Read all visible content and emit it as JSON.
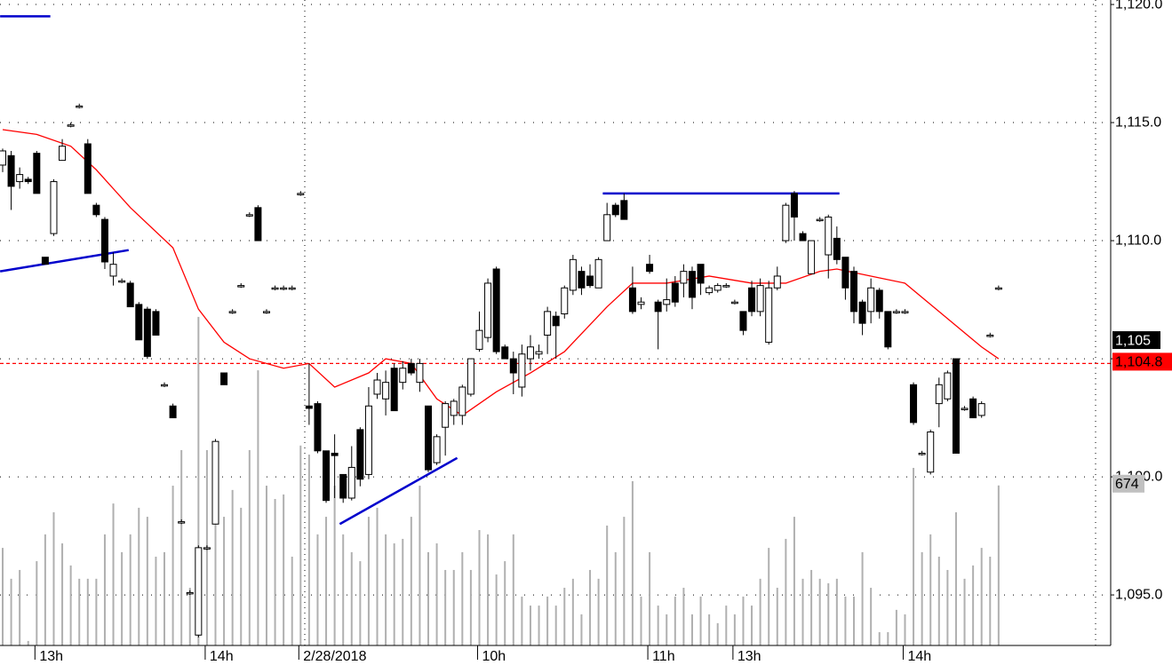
{
  "chart_data": {
    "type": "candlestick",
    "ylim": [
      1092.86,
      1120.19
    ],
    "yticks": [
      {
        "value": 1095,
        "label": "1,095.0"
      },
      {
        "value": 1100,
        "label": "1,100.0"
      },
      {
        "value": 1105,
        "label": "1,105.0"
      },
      {
        "value": 1110,
        "label": "1,110.0"
      },
      {
        "value": 1115,
        "label": "1,115.0"
      },
      {
        "value": 1120,
        "label": "1,120.0"
      }
    ],
    "grid": true,
    "up_color": "#ffffff",
    "down_color": "#000000",
    "volume_color": "#b0b0b0",
    "volume_lim": [
      0,
      2700
    ],
    "categories": [
      null,
      null,
      null,
      null,
      "13h",
      null,
      null,
      null,
      null,
      null,
      null,
      null,
      null,
      null,
      null,
      null,
      null,
      null,
      null,
      null,
      null,
      null,
      null,
      null,
      "14h",
      null,
      null,
      null,
      null,
      null,
      null,
      null,
      null,
      null,
      null,
      "2/28/2018",
      null,
      null,
      null,
      null,
      null,
      null,
      null,
      null,
      null,
      null,
      null,
      null,
      null,
      null,
      null,
      null,
      null,
      null,
      null,
      null,
      "10h",
      null,
      null,
      null,
      null,
      null,
      null,
      null,
      null,
      null,
      null,
      null,
      null,
      null,
      null,
      null,
      null,
      null,
      null,
      null,
      "11h",
      null,
      null,
      null,
      null,
      null,
      null,
      null,
      null,
      null,
      "13h",
      null,
      null,
      null,
      null,
      null,
      null,
      null,
      null,
      null,
      null,
      null,
      null,
      null,
      null,
      null,
      null,
      null,
      null,
      null,
      "14h",
      null,
      null,
      null,
      null,
      null,
      null,
      null,
      null,
      null,
      null,
      null
    ],
    "ohlc": [
      [
        1113.2,
        1113.9,
        1112.9,
        1113.8
      ],
      [
        1113.6,
        1113.8,
        1111.3,
        1112.3
      ],
      [
        1112.5,
        1113.1,
        1112.2,
        1112.8
      ],
      [
        1112.6,
        1112.7,
        1112.4,
        1112.5
      ],
      [
        1113.7,
        1113.8,
        1112.0,
        1112.0
      ],
      [
        1109.3,
        1109.3,
        1109.0,
        1109.0
      ],
      [
        1110.3,
        1112.6,
        1110.2,
        1112.5
      ],
      [
        1113.4,
        1114.3,
        1113.4,
        1114.0
      ],
      [
        1114.9,
        1115.0,
        1114.8,
        1114.9
      ],
      [
        1115.7,
        1115.8,
        1115.6,
        1115.7
      ],
      [
        1114.1,
        1114.3,
        1112.0,
        1112.0
      ],
      [
        1111.5,
        1111.6,
        1111.0,
        1111.1
      ],
      [
        1110.9,
        1111.0,
        1108.8,
        1109.1
      ],
      [
        1108.5,
        1109.5,
        1108.1,
        1109.0
      ],
      [
        1108.3,
        1108.4,
        1108.2,
        1108.3
      ],
      [
        1108.2,
        1108.3,
        1107.2,
        1107.2
      ],
      [
        1107.3,
        1107.4,
        1105.8,
        1105.8
      ],
      [
        1107.1,
        1107.2,
        1105.0,
        1105.1
      ],
      [
        1107.0,
        1107.1,
        1106.0,
        1106.0
      ],
      [
        1103.9,
        1104.0,
        1103.8,
        1103.9
      ],
      [
        1103.0,
        1103.1,
        1102.5,
        1102.5
      ],
      [
        1098.1,
        1098.2,
        1098.0,
        1098.1
      ],
      [
        1095.1,
        1095.2,
        1095.0,
        1095.1
      ],
      [
        1093.3,
        1097.1,
        1093.2,
        1097.0
      ],
      [
        1097.0,
        1097.1,
        1096.9,
        1097.0
      ],
      [
        1098.0,
        1101.6,
        1098.0,
        1101.5
      ],
      [
        1104.4,
        1104.4,
        1103.9,
        1103.9
      ],
      [
        1107.0,
        1107.1,
        1106.9,
        1107.0
      ],
      [
        1108.1,
        1108.2,
        1108.0,
        1108.1
      ],
      [
        1111.1,
        1111.2,
        1111.0,
        1111.1
      ],
      [
        1111.4,
        1111.5,
        1110.0,
        1110.0
      ],
      [
        1107.0,
        1107.1,
        1106.9,
        1107.0
      ],
      [
        1108.0,
        1108.1,
        1107.9,
        1108.0
      ],
      [
        1108.0,
        1108.1,
        1107.9,
        1108.0
      ],
      [
        1108.0,
        1108.1,
        1107.9,
        1108.0
      ],
      [
        1112.0,
        1112.1,
        1111.9,
        1112.0
      ],
      [
        1103.0,
        1104.8,
        1102.2,
        1102.9
      ],
      [
        1103.1,
        1103.2,
        1101.0,
        1101.1
      ],
      [
        1101.1,
        1101.1,
        1098.9,
        1099.0
      ],
      [
        1101.0,
        1101.8,
        1099.1,
        1100.9
      ],
      [
        1100.1,
        1100.1,
        1098.9,
        1099.1
      ],
      [
        1099.1,
        1101.3,
        1099.0,
        1100.4
      ],
      [
        1102.0,
        1102.1,
        1099.6,
        1099.9
      ],
      [
        1100.1,
        1103.8,
        1099.9,
        1103.0
      ],
      [
        1103.5,
        1104.4,
        1103.3,
        1104.1
      ],
      [
        1103.3,
        1104.5,
        1102.6,
        1104.0
      ],
      [
        1104.6,
        1104.8,
        1102.8,
        1102.8
      ],
      [
        1104.0,
        1104.9,
        1103.7,
        1104.6
      ],
      [
        1104.8,
        1105.0,
        1104.3,
        1104.4
      ],
      [
        1104.0,
        1105.0,
        1103.6,
        1104.8
      ],
      [
        1103.0,
        1103.0,
        1100.2,
        1100.3
      ],
      [
        1100.6,
        1101.8,
        1100.5,
        1101.7
      ],
      [
        1102.1,
        1103.2,
        1100.9,
        1103.1
      ],
      [
        1102.6,
        1103.3,
        1102.2,
        1103.2
      ],
      [
        1102.6,
        1103.9,
        1102.2,
        1103.8
      ],
      [
        1103.5,
        1105.0,
        1103.4,
        1105.0
      ],
      [
        1105.4,
        1107.0,
        1105.3,
        1106.2
      ],
      [
        1105.9,
        1108.4,
        1105.7,
        1108.2
      ],
      [
        1108.8,
        1108.9,
        1105.2,
        1105.3
      ],
      [
        1105.5,
        1105.6,
        1105.0,
        1105.0
      ],
      [
        1105.0,
        1105.3,
        1103.5,
        1104.4
      ],
      [
        1103.8,
        1105.6,
        1103.4,
        1105.2
      ],
      [
        1105.0,
        1106.0,
        1104.5,
        1105.5
      ],
      [
        1105.2,
        1105.6,
        1105.0,
        1105.3
      ],
      [
        1106.0,
        1107.2,
        1105.2,
        1107.0
      ],
      [
        1106.8,
        1107.0,
        1105.0,
        1106.4
      ],
      [
        1106.9,
        1108.1,
        1106.7,
        1108.0
      ],
      [
        1107.9,
        1109.4,
        1107.7,
        1109.2
      ],
      [
        1108.7,
        1108.9,
        1107.7,
        1108.0
      ],
      [
        1108.5,
        1109.0,
        1108.0,
        1108.1
      ],
      [
        1108.0,
        1109.3,
        1108.0,
        1109.2
      ],
      [
        1110.0,
        1111.6,
        1110.0,
        1111.1
      ],
      [
        1111.5,
        1111.6,
        1111.0,
        1111.1
      ],
      [
        1111.7,
        1112.0,
        1110.9,
        1110.9
      ],
      [
        1108.0,
        1108.9,
        1106.9,
        1107.0
      ],
      [
        1107.3,
        1107.6,
        1107.1,
        1107.4
      ],
      [
        1109.0,
        1109.4,
        1108.6,
        1108.7
      ],
      [
        1107.4,
        1107.5,
        1105.4,
        1107.0
      ],
      [
        1107.3,
        1108.4,
        1107.0,
        1107.5
      ],
      [
        1108.2,
        1108.5,
        1107.2,
        1107.4
      ],
      [
        1108.2,
        1109.0,
        1107.6,
        1108.7
      ],
      [
        1108.7,
        1108.9,
        1107.1,
        1107.6
      ],
      [
        1109.0,
        1109.0,
        1107.7,
        1108.2
      ],
      [
        1107.8,
        1108.1,
        1107.7,
        1108.0
      ],
      [
        1107.9,
        1108.2,
        1107.8,
        1108.1
      ],
      [
        1108.1,
        1108.2,
        1108.0,
        1108.1
      ],
      [
        1107.4,
        1107.5,
        1107.3,
        1107.4
      ],
      [
        1107.0,
        1107.0,
        1106.0,
        1106.2
      ],
      [
        1108.0,
        1108.3,
        1106.8,
        1107.0
      ],
      [
        1107.0,
        1108.4,
        1106.8,
        1108.1
      ],
      [
        1105.7,
        1108.3,
        1105.6,
        1108.0
      ],
      [
        1108.0,
        1108.9,
        1107.9,
        1108.5
      ],
      [
        1110.0,
        1111.6,
        1109.9,
        1111.5
      ],
      [
        1112.0,
        1112.1,
        1110.0,
        1111.0
      ],
      [
        1110.3,
        1110.4,
        1110.0,
        1110.0
      ],
      [
        1108.6,
        1110.0,
        1108.6,
        1110.0
      ],
      [
        1110.9,
        1111.0,
        1110.8,
        1110.9
      ],
      [
        1109.4,
        1111.1,
        1108.4,
        1111.0
      ],
      [
        1110.1,
        1110.6,
        1109.0,
        1109.2
      ],
      [
        1109.3,
        1109.3,
        1107.5,
        1108.0
      ],
      [
        1108.7,
        1108.9,
        1106.5,
        1107.0
      ],
      [
        1107.4,
        1107.5,
        1106.0,
        1106.5
      ],
      [
        1107.0,
        1108.4,
        1106.5,
        1108.0
      ],
      [
        1107.9,
        1108.0,
        1106.7,
        1107.0
      ],
      [
        1107.0,
        1107.0,
        1105.4,
        1105.5
      ],
      [
        1107.0,
        1107.1,
        1106.9,
        1107.0
      ],
      [
        1107.0,
        1107.1,
        1106.9,
        1107.0
      ],
      [
        1103.9,
        1104.0,
        1102.2,
        1102.3
      ],
      [
        1101.0,
        1101.1,
        1100.9,
        1101.0
      ],
      [
        1100.2,
        1102.0,
        1100.1,
        1101.9
      ],
      [
        1103.1,
        1104.2,
        1102.1,
        1103.9
      ],
      [
        1103.3,
        1104.5,
        1103.2,
        1104.4
      ],
      [
        1105.0,
        1105.0,
        1101.0,
        1101.0
      ],
      [
        1102.9,
        1103.0,
        1102.8,
        1102.9
      ],
      [
        1103.3,
        1103.4,
        1102.5,
        1102.5
      ],
      [
        1102.6,
        1103.2,
        1102.5,
        1103.1
      ],
      [
        1106.0,
        1106.1,
        1105.9,
        1106.0
      ],
      [
        1108.0,
        1108.1,
        1107.9,
        1108.0
      ]
    ],
    "volume": [
      411,
      281,
      318,
      19,
      355,
      468,
      561,
      430,
      337,
      281,
      281,
      281,
      468,
      598,
      393,
      468,
      580,
      542,
      374,
      393,
      673,
      823,
      243,
      1384,
      823,
      860,
      542,
      655,
      580,
      823,
      1159,
      673,
      617,
      636,
      374,
      842,
      804,
      468,
      542,
      673,
      468,
      393,
      355,
      542,
      580,
      468,
      430,
      449,
      542,
      673,
      393,
      430,
      318,
      318,
      393,
      318,
      486,
      468,
      299,
      355,
      468,
      206,
      168,
      168,
      206,
      168,
      243,
      281,
      131,
      318,
      281,
      505,
      393,
      542,
      692,
      206,
      393,
      168,
      131,
      206,
      243,
      131,
      206,
      131,
      94,
      168,
      131,
      206,
      168,
      281,
      411,
      243,
      449,
      542,
      281,
      318,
      281,
      262,
      281,
      206,
      206,
      393,
      243,
      56,
      56,
      150,
      131,
      748,
      393,
      468,
      374,
      318,
      561,
      281,
      337,
      411,
      374,
      674
    ],
    "moving_average": {
      "color": "#ff0000",
      "x": [
        0,
        4,
        8,
        11,
        15,
        20,
        23,
        26,
        29,
        33,
        36,
        39,
        43,
        45,
        48,
        51,
        54,
        58,
        62,
        66,
        71,
        74,
        78,
        83,
        88,
        92,
        96,
        98,
        102,
        106,
        110,
        115,
        117
      ],
      "values": [
        1114.7,
        1114.5,
        1114.0,
        1113.0,
        1111.4,
        1109.7,
        1107.1,
        1105.7,
        1105.0,
        1104.6,
        1104.8,
        1103.8,
        1104.4,
        1105.0,
        1104.8,
        1103.3,
        1102.6,
        1103.6,
        1104.4,
        1105.3,
        1107.2,
        1108.2,
        1108.2,
        1108.5,
        1108.2,
        1108.2,
        1108.7,
        1108.8,
        1108.5,
        1108.2,
        1107.0,
        1105.5,
        1105.0
      ]
    },
    "reference_line": {
      "value": 1104.8,
      "color": "#ff0000"
    },
    "trendlines": [
      {
        "color": "#0000cc",
        "x": [
          -0.3,
          5.6
        ],
        "values": [
          1119.5,
          1119.5
        ]
      },
      {
        "color": "#0000cc",
        "x": [
          -0.3,
          14.8
        ],
        "values": [
          1108.7,
          1109.6
        ]
      },
      {
        "color": "#0000cc",
        "x": [
          39.6,
          53.4
        ],
        "values": [
          1098.0,
          1100.8
        ]
      },
      {
        "color": "#0000cc",
        "x": [
          70.5,
          98.3
        ],
        "values": [
          1112.0,
          1112.0
        ]
      }
    ],
    "price_label": {
      "value": 1105,
      "label": "1,105"
    },
    "ma_label": {
      "value": 1104.8,
      "label": "1,104.8"
    },
    "volume_label": {
      "value": 674,
      "label": "674"
    }
  }
}
